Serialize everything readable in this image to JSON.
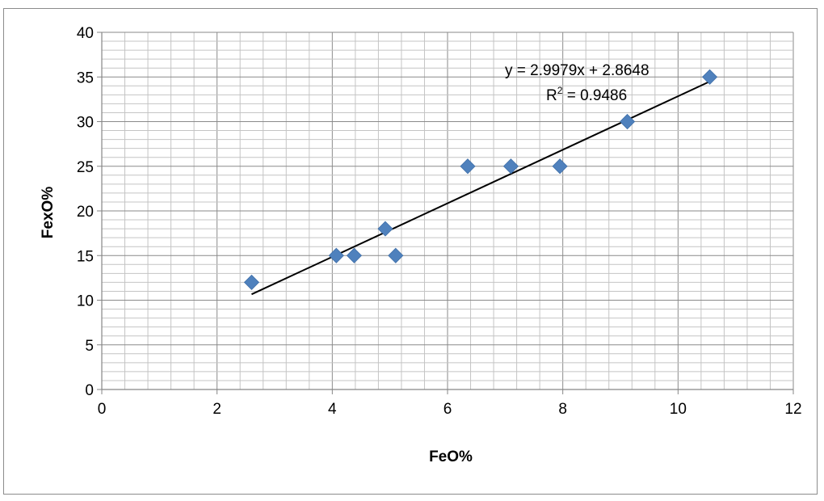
{
  "chart_data": {
    "type": "scatter",
    "xlabel": "FeO%",
    "ylabel": "FexO%",
    "xlim": [
      0,
      12
    ],
    "ylim": [
      0,
      40
    ],
    "x_ticks": [
      "0",
      "2",
      "4",
      "6",
      "8",
      "10",
      "12"
    ],
    "y_ticks": [
      "0",
      "5",
      "10",
      "15",
      "20",
      "25",
      "30",
      "35",
      "40"
    ],
    "grid": true,
    "marker_color": "#4f81bd",
    "series": [
      {
        "points": [
          {
            "x": 2.6,
            "y": 12
          },
          {
            "x": 4.07,
            "y": 15
          },
          {
            "x": 4.38,
            "y": 15
          },
          {
            "x": 4.92,
            "y": 18
          },
          {
            "x": 5.1,
            "y": 15
          },
          {
            "x": 6.35,
            "y": 25
          },
          {
            "x": 7.1,
            "y": 25
          },
          {
            "x": 7.95,
            "y": 25
          },
          {
            "x": 9.12,
            "y": 30
          },
          {
            "x": 10.55,
            "y": 35
          }
        ]
      }
    ],
    "trendline": {
      "slope": 2.9979,
      "intercept": 2.8648,
      "x_range": [
        2.6,
        10.55
      ],
      "color": "#000000",
      "equation_label": "y = 2.9979x + 2.8648",
      "r2_prefix": "R",
      "r2_exponent": "2",
      "r2_value": " = 0.9486"
    }
  }
}
